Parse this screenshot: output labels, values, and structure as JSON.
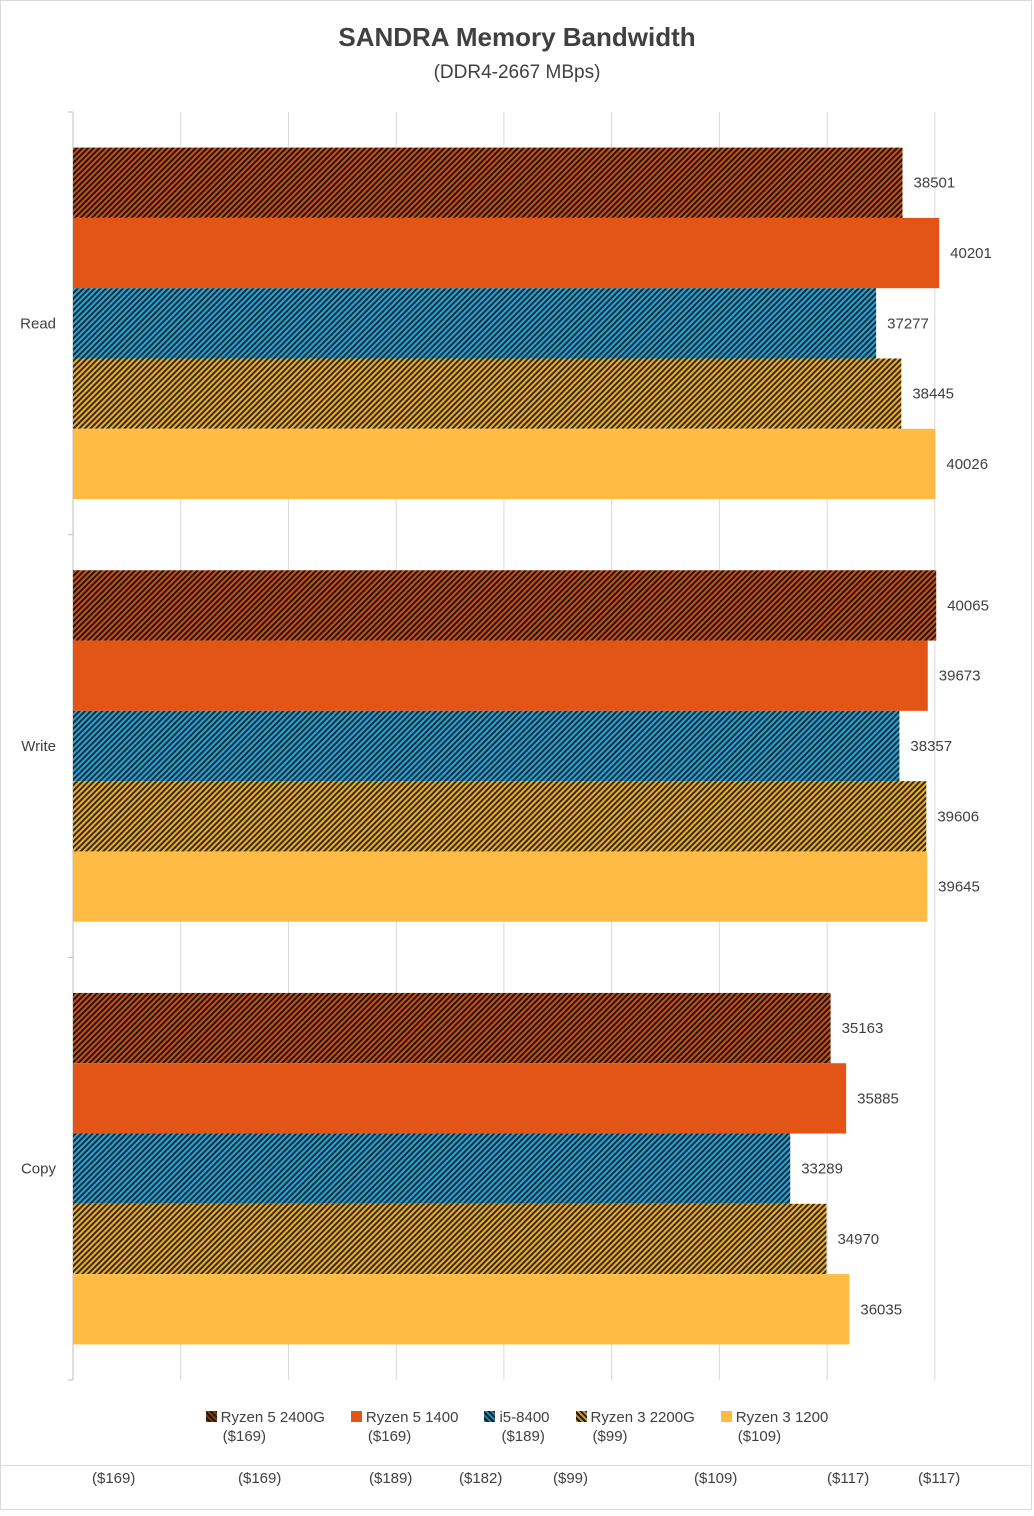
{
  "chart_data": {
    "type": "bar",
    "orientation": "horizontal",
    "title": "SANDRA Memory Bandwidth",
    "subtitle": "(DDR4-2667 MBps)",
    "categories": [
      "Read",
      "Write",
      "Copy"
    ],
    "xlim": [
      0,
      44000
    ],
    "grid": true,
    "legend_position": "bottom",
    "series": [
      {
        "name": "Ryzen 5 2400G",
        "price": "($169)",
        "color": "#843c0c",
        "pattern": "hatch-dark",
        "values": [
          38501,
          40065,
          35163
        ]
      },
      {
        "name": "Ryzen 5 1400",
        "price": "($169)",
        "color": "#e35516",
        "pattern": "solid",
        "values": [
          40201,
          39673,
          35885
        ]
      },
      {
        "name": "i5-8400",
        "price": "($189)",
        "color": "#1f87b4",
        "pattern": "hatch-blue",
        "values": [
          37277,
          38357,
          33289
        ]
      },
      {
        "name": "Ryzen 3 2200G",
        "price": "($99)",
        "color": "#c8962a",
        "pattern": "hatch-gold",
        "values": [
          38445,
          39606,
          34970
        ]
      },
      {
        "name": "Ryzen 3 1200",
        "price": "($109)",
        "color": "#ffbb44",
        "pattern": "solid",
        "values": [
          40026,
          39645,
          36035
        ]
      }
    ]
  },
  "bottom_prices": [
    "($169)",
    "($169)",
    "($189)",
    "($182)",
    "($99)",
    "($109)",
    "($117)",
    "($117)"
  ]
}
